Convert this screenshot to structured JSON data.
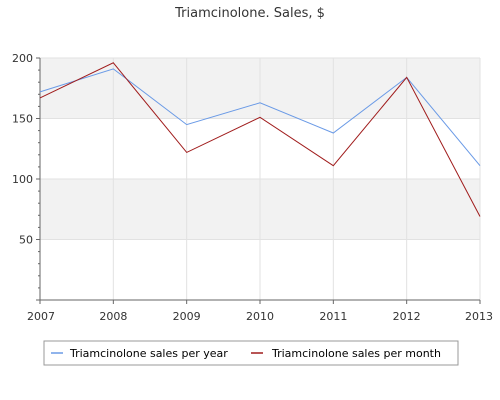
{
  "chart_data": {
    "type": "line",
    "title": "Triamcinolone. Sales, $",
    "x": [
      "2007",
      "2008",
      "2009",
      "2010",
      "2011",
      "2012",
      "2013"
    ],
    "xlabel": "",
    "ylabel": "",
    "ylim": [
      0,
      200
    ],
    "yticks": [
      50,
      100,
      150,
      200
    ],
    "grid": true,
    "legend_position": "bottom",
    "series": [
      {
        "name": "Triamcinolone sales per year",
        "color": "#6a9ae6",
        "values": [
          172,
          191,
          145,
          163,
          138,
          184,
          111
        ]
      },
      {
        "name": "Triamcinolone sales per month",
        "color": "#a01c1c",
        "values": [
          167,
          196,
          122,
          151,
          111,
          184,
          69
        ]
      }
    ]
  }
}
